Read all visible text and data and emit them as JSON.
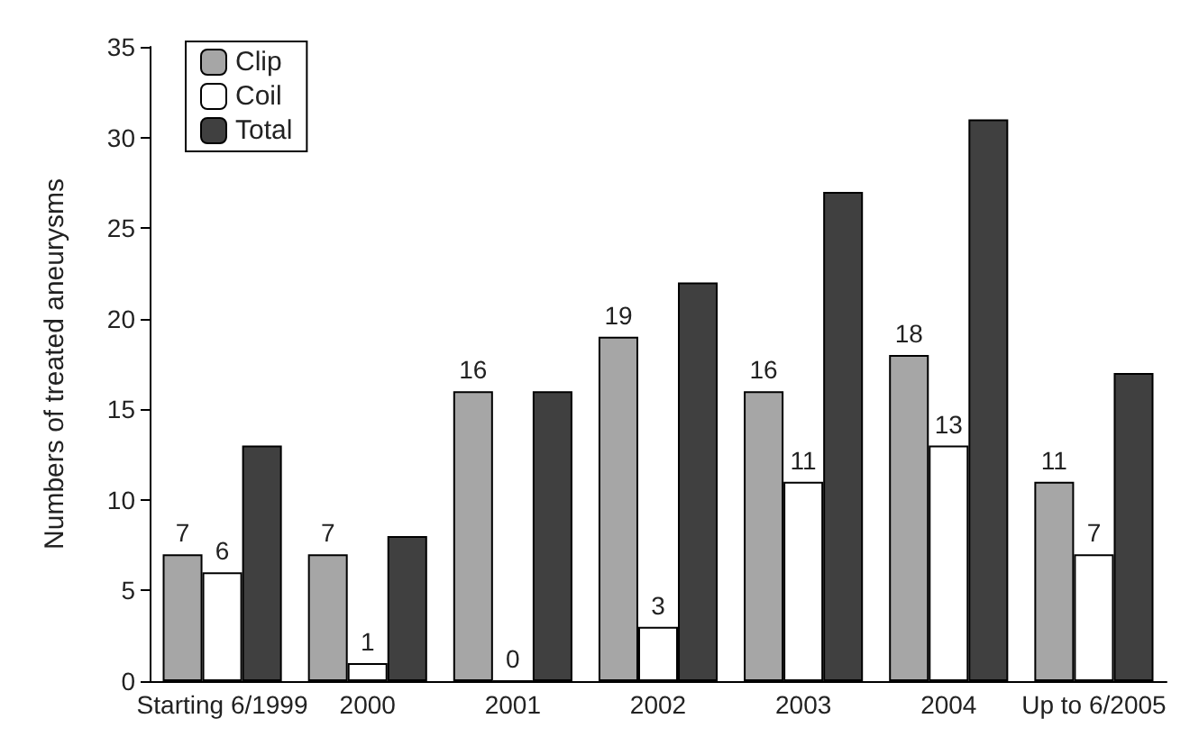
{
  "chart_data": {
    "type": "bar",
    "ylabel": "Numbers of treated aneurysms",
    "categories": [
      "Starting 6/1999",
      "2000",
      "2001",
      "2002",
      "2003",
      "2004",
      "Up to 6/2005"
    ],
    "series": [
      {
        "name": "Clip",
        "color": "#a6a6a6",
        "values": [
          7,
          7,
          16,
          19,
          16,
          18,
          11
        ],
        "value_labels": [
          "7",
          "7",
          "16",
          "19",
          "16",
          "18",
          "11"
        ]
      },
      {
        "name": "Coil",
        "color": "#ffffff",
        "values": [
          6,
          1,
          0,
          3,
          11,
          13,
          7
        ],
        "value_labels": [
          "6",
          "1",
          "0",
          "3",
          "11",
          "13",
          "7"
        ]
      },
      {
        "name": "Total",
        "color": "#404040",
        "values": [
          13,
          8,
          16,
          22,
          27,
          31,
          17
        ]
      }
    ],
    "ylim": [
      0,
      35
    ],
    "yticks": [
      0,
      5,
      10,
      15,
      20,
      25,
      30,
      35
    ],
    "grid": false,
    "legend": "top left"
  }
}
